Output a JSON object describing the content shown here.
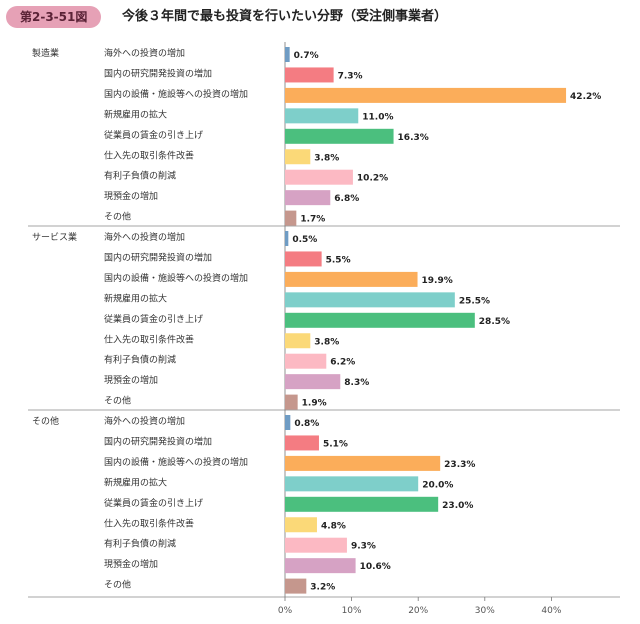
{
  "header": {
    "badge": "第2-3-51図",
    "title": "今後３年間で最も投資を行いたい分野（受注側事業者）"
  },
  "chart_data": {
    "type": "bar",
    "orientation": "horizontal",
    "title": "今後３年間で最も投資を行いたい分野（受注側事業者）",
    "categories": [
      "海外への投資の増加",
      "国内の研究開発投資の増加",
      "国内の設備・施設等への投資の増加",
      "新規雇用の拡大",
      "従業員の賃金の引き上げ",
      "仕入先の取引条件改善",
      "有利子負債の削減",
      "現預金の増加",
      "その他"
    ],
    "colors": [
      "#6f9cc4",
      "#f47c82",
      "#fbad5a",
      "#7ecfca",
      "#4bbf7e",
      "#fbd978",
      "#fcb9c3",
      "#d6a2c4",
      "#c5978d"
    ],
    "xlim": [
      0,
      50
    ],
    "xticks": [
      "0%",
      "10%",
      "20%",
      "30%",
      "40%"
    ],
    "groups": [
      {
        "name": "製造業",
        "values": [
          0.7,
          7.3,
          42.2,
          11.0,
          16.3,
          3.8,
          10.2,
          6.8,
          1.7
        ]
      },
      {
        "name": "サービス業",
        "values": [
          0.5,
          5.5,
          19.9,
          25.5,
          28.5,
          3.8,
          6.2,
          8.3,
          1.9
        ]
      },
      {
        "name": "その他",
        "values": [
          0.8,
          5.1,
          23.3,
          20.0,
          23.0,
          4.8,
          9.3,
          10.6,
          3.2
        ]
      }
    ]
  }
}
